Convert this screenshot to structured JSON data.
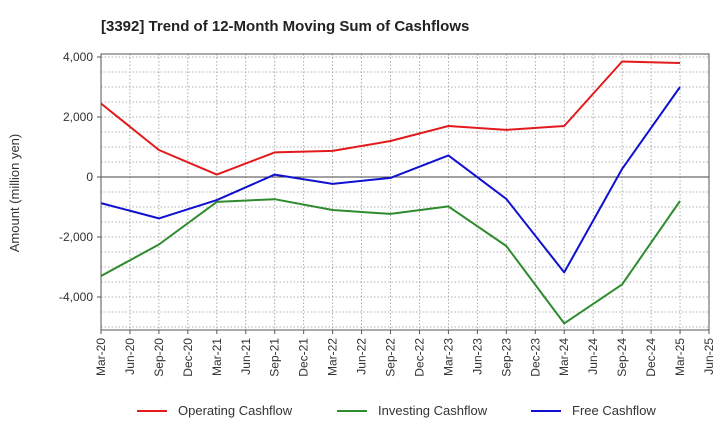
{
  "chart_data": {
    "type": "line",
    "title": "[3392]  Trend of 12-Month Moving Sum of Cashflows",
    "xlabel": "",
    "ylabel": "Amount (million yen)",
    "ylim": [
      -5100,
      4100
    ],
    "yticks": [
      4000,
      2000,
      0,
      -2000,
      -4000
    ],
    "ytick_labels": [
      "4,000",
      "2,000",
      "0",
      "-2,000",
      "-4,000"
    ],
    "x_tick_labels": [
      "Mar-20",
      "Jun-20",
      "Sep-20",
      "Dec-20",
      "Mar-21",
      "Jun-21",
      "Sep-21",
      "Dec-21",
      "Mar-22",
      "Jun-22",
      "Sep-22",
      "Dec-22",
      "Mar-23",
      "Jun-23",
      "Sep-23",
      "Dec-23",
      "Mar-24",
      "Jun-24",
      "Sep-24",
      "Dec-24",
      "Mar-25",
      "Jun-25"
    ],
    "x": [
      "Mar-20",
      "Sep-20",
      "Mar-21",
      "Sep-21",
      "Mar-22",
      "Sep-22",
      "Mar-23",
      "Sep-23",
      "Mar-24",
      "Sep-24",
      "Mar-25"
    ],
    "grid": true,
    "legend_position": "bottom",
    "series": [
      {
        "name": "Operating Cashflow",
        "color": "#e31a1c",
        "values": [
          2450,
          900,
          80,
          820,
          870,
          1200,
          1700,
          1570,
          1700,
          3850,
          3800
        ]
      },
      {
        "name": "Investing Cashflow",
        "color": "#2e8b2e",
        "values": [
          -3300,
          -2250,
          -830,
          -740,
          -1100,
          -1230,
          -980,
          -2300,
          -4880,
          -3580,
          -800
        ]
      },
      {
        "name": "Free Cashflow",
        "color": "#1010d0",
        "values": [
          -870,
          -1380,
          -770,
          80,
          -230,
          -30,
          720,
          -730,
          -3180,
          270,
          3000
        ]
      }
    ]
  }
}
